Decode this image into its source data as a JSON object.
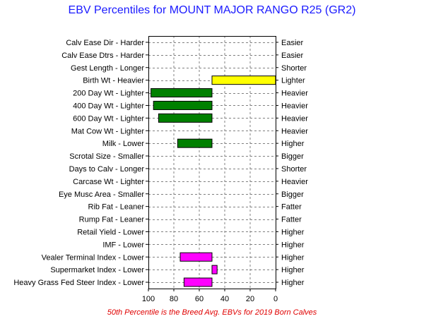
{
  "chart_data": {
    "type": "bar",
    "orientation": "horizontal",
    "title": "EBV Percentiles for MOUNT MAJOR RANGO R25 (GR2)",
    "footnote": "50th Percentile is the Breed Avg. EBVs for 2019 Born Calves",
    "xlim": [
      100,
      0
    ],
    "xticks": [
      "100",
      "80",
      "60",
      "40",
      "20",
      "0"
    ],
    "xtick_values": [
      100,
      80,
      60,
      40,
      20,
      0
    ],
    "grid": true,
    "baseline": 50,
    "rows": [
      {
        "left": "Calv Ease Dir - Harder",
        "right": "Easier",
        "value": null,
        "color": ""
      },
      {
        "left": "Calv Ease Dtrs - Harder",
        "right": "Easier",
        "value": null,
        "color": ""
      },
      {
        "left": "Gest Length - Longer",
        "right": "Shorter",
        "value": null,
        "color": ""
      },
      {
        "left": "Birth Wt - Heavier",
        "right": "Lighter",
        "value": 0,
        "color": "#ffff00"
      },
      {
        "left": "200 Day Wt - Lighter",
        "right": "Heavier",
        "value": 98,
        "color": "#008000"
      },
      {
        "left": "400 Day Wt - Lighter",
        "right": "Heavier",
        "value": 96,
        "color": "#008000"
      },
      {
        "left": "600 Day Wt - Lighter",
        "right": "Heavier",
        "value": 92,
        "color": "#008000"
      },
      {
        "left": "Mat Cow Wt - Lighter",
        "right": "Heavier",
        "value": null,
        "color": ""
      },
      {
        "left": "Milk - Lower",
        "right": "Higher",
        "value": 77,
        "color": "#008000"
      },
      {
        "left": "Scrotal Size - Smaller",
        "right": "Bigger",
        "value": null,
        "color": ""
      },
      {
        "left": "Days to Calv - Longer",
        "right": "Shorter",
        "value": null,
        "color": ""
      },
      {
        "left": "Carcase Wt - Lighter",
        "right": "Heavier",
        "value": null,
        "color": ""
      },
      {
        "left": "Eye Musc Area - Smaller",
        "right": "Bigger",
        "value": null,
        "color": ""
      },
      {
        "left": "Rib Fat - Leaner",
        "right": "Fatter",
        "value": null,
        "color": ""
      },
      {
        "left": "Rump Fat - Leaner",
        "right": "Fatter",
        "value": null,
        "color": ""
      },
      {
        "left": "Retail Yield - Lower",
        "right": "Higher",
        "value": null,
        "color": ""
      },
      {
        "left": "IMF - Lower",
        "right": "Higher",
        "value": null,
        "color": ""
      },
      {
        "left": "Vealer Terminal Index - Lower",
        "right": "Higher",
        "value": 75,
        "color": "#ff00ff"
      },
      {
        "left": "Supermarket Index - Lower",
        "right": "Higher",
        "value": 46,
        "color": "#ff00ff"
      },
      {
        "left": "Heavy Grass Fed Steer Index - Lower",
        "right": "Higher",
        "value": 72,
        "color": "#ff00ff"
      }
    ]
  }
}
